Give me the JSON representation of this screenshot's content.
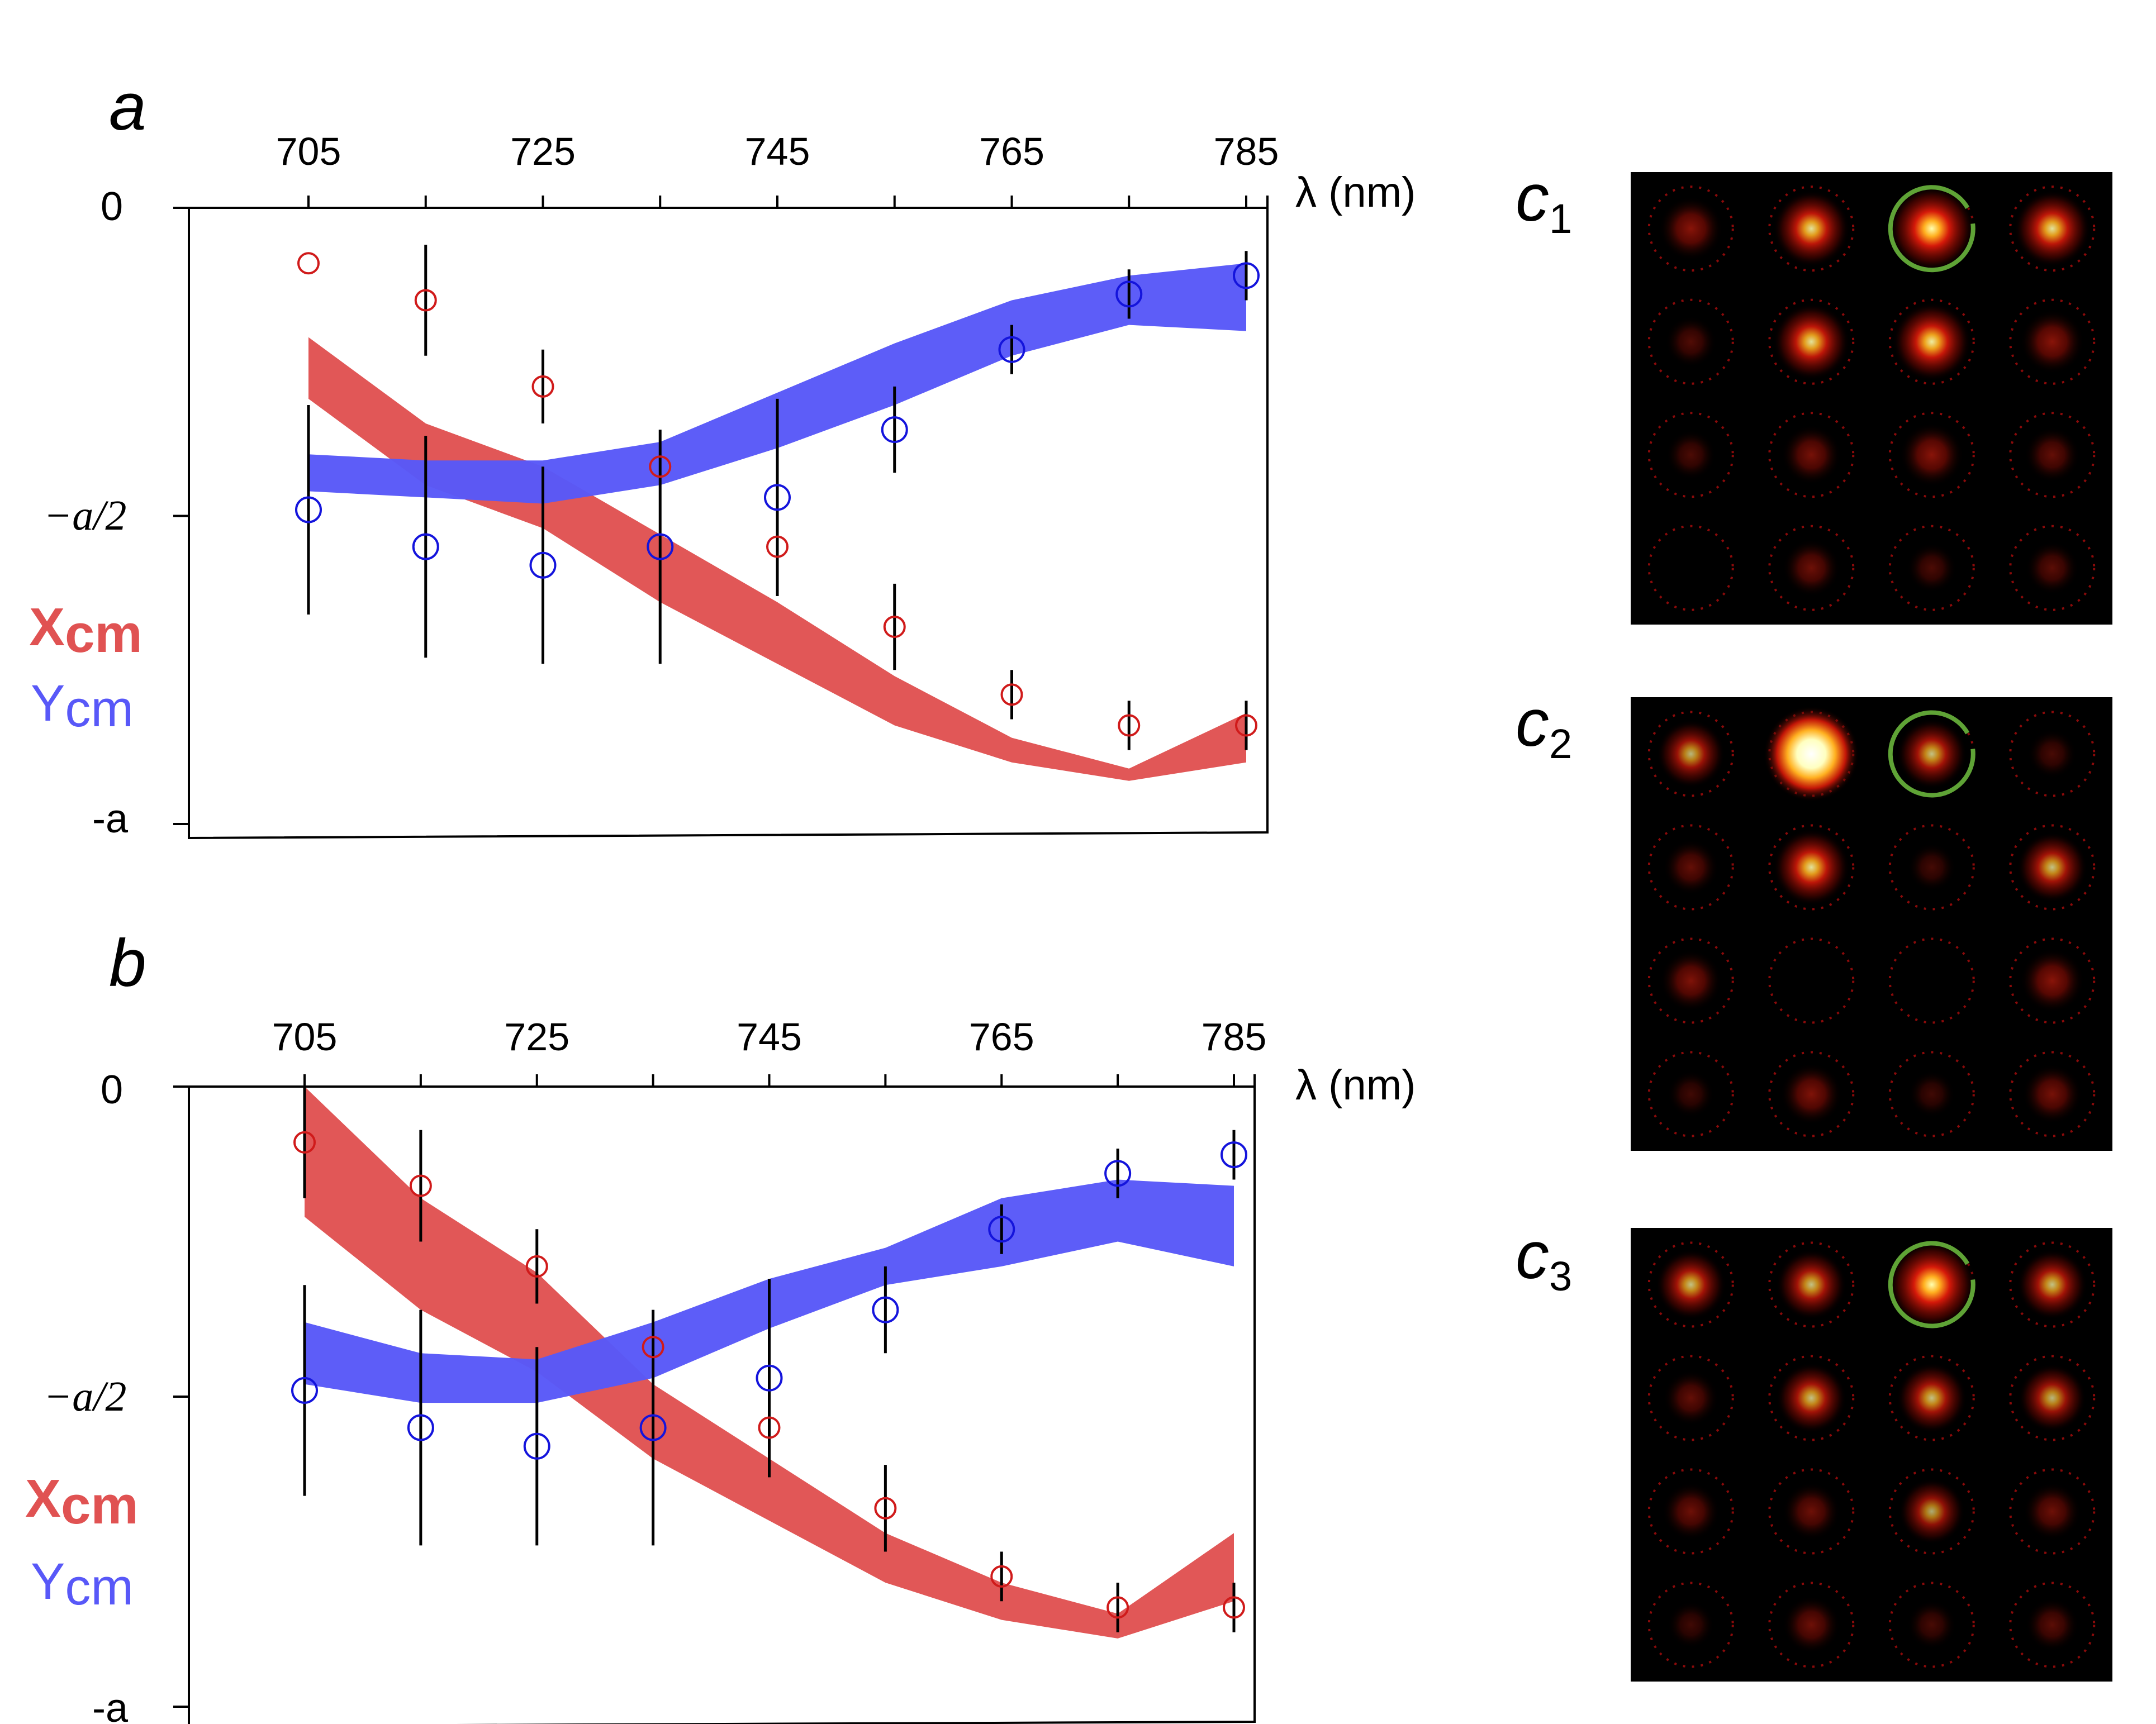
{
  "chart_data": [
    {
      "type": "line",
      "panel": "a",
      "xlabel": "λ (nm)",
      "x_ticks": [
        705,
        725,
        745,
        765,
        785
      ],
      "y_ticks": [
        "0",
        "−a/2",
        "-a"
      ],
      "xlim": [
        695,
        787
      ],
      "ylim": [
        -1,
        0
      ],
      "x": [
        705,
        715,
        725,
        735,
        745,
        755,
        765,
        775,
        785
      ],
      "series": [
        {
          "name": "Xcm",
          "color": "#e05252",
          "band_upper": [
            -0.21,
            -0.35,
            -0.42,
            -0.53,
            -0.64,
            -0.76,
            -0.86,
            -0.91,
            -0.82
          ],
          "band_lower": [
            -0.31,
            -0.45,
            -0.52,
            -0.64,
            -0.74,
            -0.84,
            -0.9,
            -0.93,
            -0.9
          ],
          "points": [
            -0.09,
            -0.15,
            -0.29,
            -0.42,
            -0.55,
            -0.68,
            -0.79,
            -0.84,
            -0.84
          ],
          "errors": [
            0,
            0.09,
            0.06,
            0,
            0.08,
            0.07,
            0.04,
            0.04,
            0.04
          ]
        },
        {
          "name": "Ycm",
          "color": "#5858f8",
          "band_upper": [
            -0.4,
            -0.41,
            -0.41,
            -0.38,
            -0.3,
            -0.22,
            -0.15,
            -0.11,
            -0.09
          ],
          "band_lower": [
            -0.46,
            -0.47,
            -0.48,
            -0.45,
            -0.39,
            -0.32,
            -0.24,
            -0.19,
            -0.2
          ],
          "points": [
            -0.49,
            -0.55,
            -0.58,
            -0.55,
            -0.47,
            -0.36,
            -0.23,
            -0.14,
            -0.11
          ],
          "errors": [
            0.17,
            0.18,
            0.16,
            0.19,
            0.16,
            0.07,
            0.04,
            0.04,
            0.04
          ]
        }
      ]
    },
    {
      "type": "line",
      "panel": "b",
      "xlabel": "λ (nm)",
      "x_ticks": [
        705,
        725,
        745,
        765,
        785
      ],
      "y_ticks": [
        "0",
        "−a/2",
        "-a"
      ],
      "xlim": [
        695,
        787
      ],
      "ylim": [
        -1,
        0
      ],
      "x": [
        705,
        715,
        725,
        735,
        745,
        755,
        765,
        775,
        785
      ],
      "series": [
        {
          "name": "Xcm",
          "color": "#e05252",
          "band_upper": [
            0,
            -0.18,
            -0.3,
            -0.48,
            -0.6,
            -0.72,
            -0.8,
            -0.85,
            -0.72
          ],
          "band_lower": [
            -0.21,
            -0.36,
            -0.46,
            -0.6,
            -0.7,
            -0.8,
            -0.86,
            -0.89,
            -0.83
          ],
          "points": [
            -0.09,
            -0.16,
            -0.29,
            -0.42,
            -0.55,
            -0.68,
            -0.79,
            -0.84,
            -0.84
          ],
          "errors": [
            0.09,
            0.09,
            0.06,
            0,
            0.08,
            0.07,
            0.04,
            0.04,
            0.04
          ]
        },
        {
          "name": "Ycm",
          "color": "#5858f8",
          "band_upper": [
            -0.38,
            -0.43,
            -0.44,
            -0.38,
            -0.31,
            -0.26,
            -0.18,
            -0.15,
            -0.16
          ],
          "band_lower": [
            -0.48,
            -0.51,
            -0.51,
            -0.47,
            -0.39,
            -0.32,
            -0.29,
            -0.25,
            -0.29
          ],
          "points": [
            -0.49,
            -0.55,
            -0.58,
            -0.55,
            -0.47,
            -0.36,
            -0.23,
            -0.14,
            -0.11
          ],
          "errors": [
            0.17,
            0.19,
            0.16,
            0.19,
            0.16,
            0.07,
            0.04,
            0.04,
            0.04
          ]
        }
      ]
    }
  ],
  "panels": {
    "a": {
      "label": "a"
    },
    "b": {
      "label": "b"
    }
  },
  "legend": {
    "x_main": "X",
    "x_sub": "cm",
    "y_main": "Y",
    "y_sub": "cm"
  },
  "heatmaps": [
    {
      "label": "c",
      "subscript": "1",
      "highlight": [
        0,
        2
      ],
      "intensity": [
        [
          0.45,
          0.75,
          1.0,
          0.75
        ],
        [
          0.15,
          0.75,
          0.8,
          0.45
        ],
        [
          0.12,
          0.35,
          0.45,
          0.25
        ],
        [
          0.0,
          0.3,
          0.12,
          0.2
        ]
      ]
    },
    {
      "label": "c",
      "subscript": "2",
      "highlight": [
        0,
        2
      ],
      "intensity": [
        [
          0.55,
          1.3,
          0.6,
          0.1
        ],
        [
          0.25,
          0.75,
          0.08,
          0.6
        ],
        [
          0.4,
          0.0,
          0.0,
          0.45
        ],
        [
          0.05,
          0.4,
          0.05,
          0.35
        ]
      ]
    },
    {
      "label": "c",
      "subscript": "3",
      "highlight": [
        0,
        2
      ],
      "intensity": [
        [
          0.6,
          0.6,
          1.05,
          0.6
        ],
        [
          0.25,
          0.6,
          0.6,
          0.55
        ],
        [
          0.3,
          0.3,
          0.5,
          0.3
        ],
        [
          0.05,
          0.3,
          0.1,
          0.2
        ]
      ]
    }
  ]
}
